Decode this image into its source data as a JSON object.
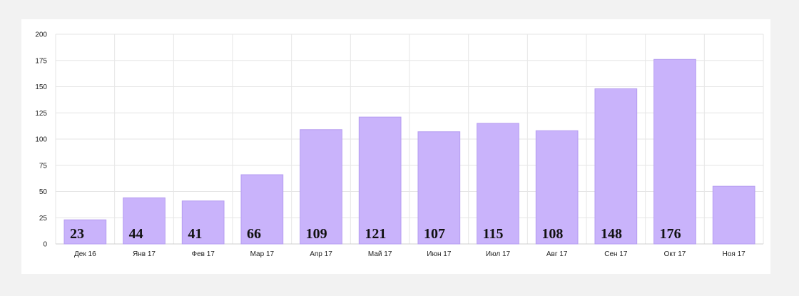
{
  "chart_data": {
    "type": "bar",
    "categories": [
      "Дек 16",
      "Янв 17",
      "Фев 17",
      "Мар 17",
      "Апр 17",
      "Май 17",
      "Июн 17",
      "Июл 17",
      "Авг 17",
      "Сен 17",
      "Окт 17",
      "Ноя 17"
    ],
    "values": [
      23,
      44,
      41,
      66,
      109,
      121,
      107,
      115,
      108,
      148,
      176,
      55
    ],
    "data_labels": [
      "23",
      "44",
      "41",
      "66",
      "109",
      "121",
      "107",
      "115",
      "108",
      "148",
      "176",
      ""
    ],
    "title": "",
    "xlabel": "",
    "ylabel": "",
    "ylim": [
      0,
      200
    ],
    "yticks": [
      0,
      25,
      50,
      75,
      100,
      125,
      150,
      175,
      200
    ],
    "grid": true,
    "legend": "none",
    "colors": {
      "bar_fill": "#c9b3fb",
      "bar_stroke": "#b59cf0",
      "grid": "#e6e6e6",
      "axis": "#cfcfcf"
    }
  }
}
